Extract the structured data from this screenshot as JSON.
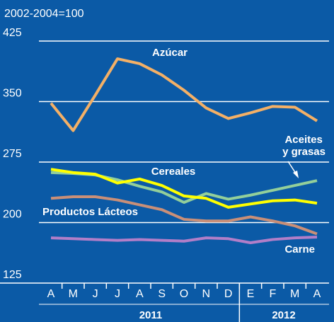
{
  "chart_data": {
    "type": "line",
    "subtitle": "2002-2004=100",
    "categories": [
      "A",
      "M",
      "J",
      "J",
      "A",
      "S",
      "O",
      "N",
      "D",
      "E",
      "F",
      "M",
      "A"
    ],
    "years": [
      "2011",
      "2012"
    ],
    "ylim": [
      125,
      425
    ],
    "yticks": [
      125,
      200,
      275,
      350,
      425
    ],
    "grid": true,
    "series": [
      {
        "name": "Azúcar",
        "color": "#f4b066",
        "values": [
          348,
          314,
          358,
          403,
          397,
          383,
          364,
          342,
          329,
          336,
          344,
          343,
          326
        ]
      },
      {
        "name": "Aceites y grasas",
        "color": "#93cf9a",
        "values": [
          262,
          261,
          259,
          253,
          245,
          238,
          225,
          236,
          229,
          234,
          240,
          246,
          252
        ]
      },
      {
        "name": "Cereales",
        "color": "#ffff00",
        "values": [
          266,
          262,
          260,
          249,
          254,
          246,
          233,
          230,
          219,
          223,
          227,
          228,
          224
        ]
      },
      {
        "name": "Productos Lácteos",
        "color": "#c98f78",
        "values": [
          230,
          232,
          232,
          228,
          222,
          216,
          204,
          202,
          202,
          207,
          202,
          196,
          186
        ]
      },
      {
        "name": "Carne",
        "color": "#b27ec8",
        "values": [
          181,
          180,
          179,
          178,
          179,
          178,
          177,
          181,
          180,
          175,
          179,
          181,
          182
        ]
      }
    ]
  }
}
